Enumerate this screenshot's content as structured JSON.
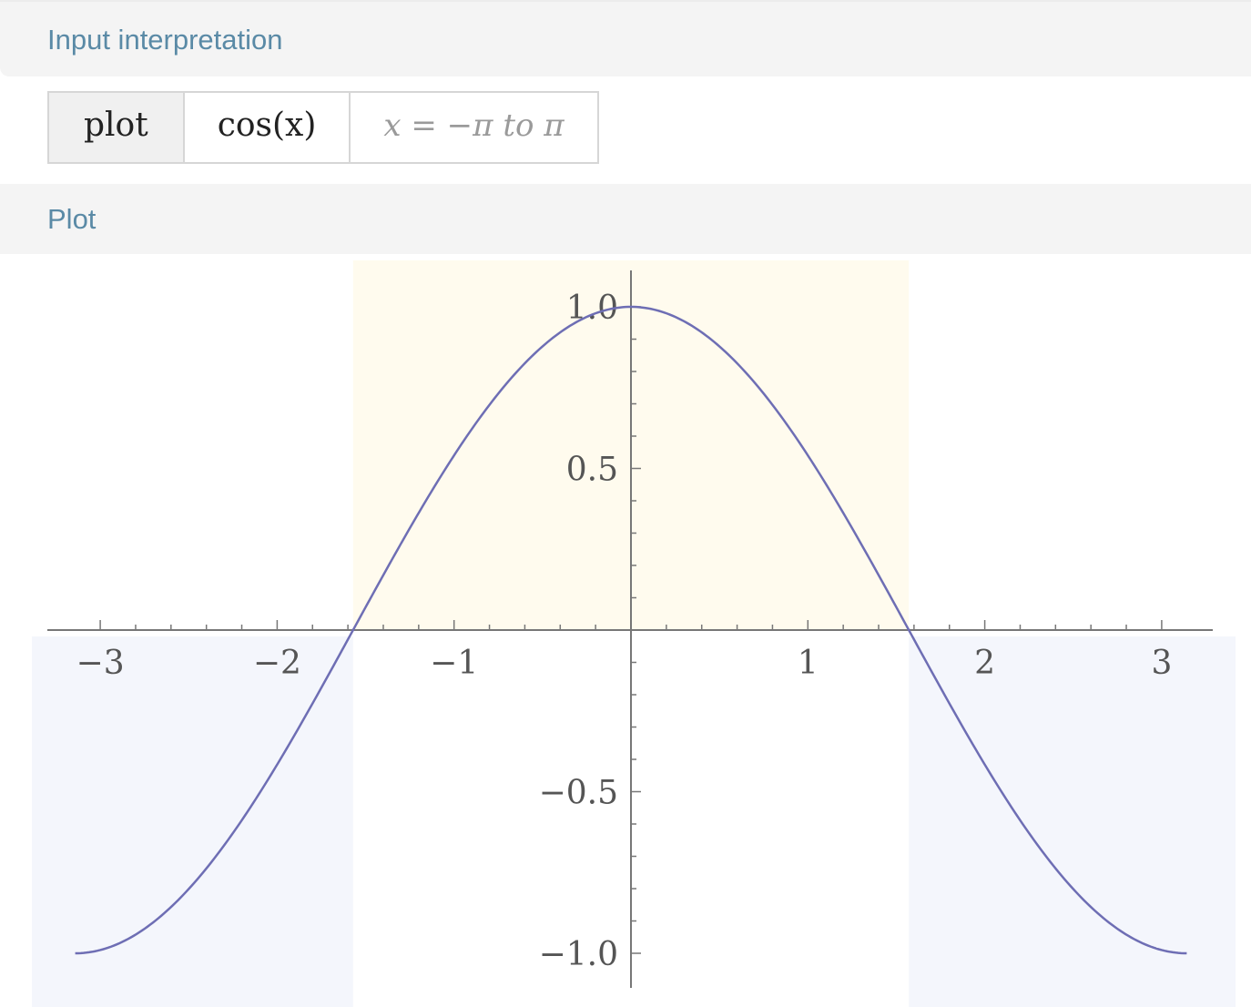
{
  "pods": {
    "input_title": "Input interpretation",
    "plot_title": "Plot"
  },
  "interpretation": {
    "keyword": "plot",
    "expression": "cos(x)",
    "range": "x = −π to π"
  },
  "colors": {
    "curve": "#6e6eb4",
    "positive_region": "#fffbee",
    "negative_region": "#f4f6fc",
    "axis": "#777777",
    "header_text": "#5a8aa6",
    "header_bg": "#f4f4f4"
  },
  "chart_data": {
    "type": "line",
    "function": "cos(x)",
    "xlim": [
      -3.14159,
      3.14159
    ],
    "ylim": [
      -1.0,
      1.0
    ],
    "x_ticks": [
      -3,
      -2,
      -1,
      1,
      2,
      3
    ],
    "x_tick_labels": [
      "−3",
      "−2",
      "−1",
      "1",
      "2",
      "3"
    ],
    "y_ticks": [
      1.0,
      0.5,
      -0.5,
      -1.0
    ],
    "y_tick_labels": [
      "1.0",
      "0.5",
      "−0.5",
      "−1.0"
    ],
    "grid": false,
    "series": [
      {
        "x": [
          -3.1416,
          -2.8274,
          -2.5133,
          -2.1991,
          -1.885,
          -1.5708,
          -1.2566,
          -0.9425,
          -0.6283,
          -0.3142,
          0,
          0.3142,
          0.6283,
          0.9425,
          1.2566,
          1.5708,
          1.885,
          2.1991,
          2.5133,
          2.8274,
          3.1416
        ],
        "y": [
          -1.0,
          -0.951,
          -0.809,
          -0.588,
          -0.309,
          0.0,
          0.309,
          0.588,
          0.809,
          0.951,
          1.0,
          0.951,
          0.809,
          0.588,
          0.309,
          0.0,
          -0.309,
          -0.588,
          -0.809,
          -0.951,
          -1.0
        ]
      }
    ]
  }
}
